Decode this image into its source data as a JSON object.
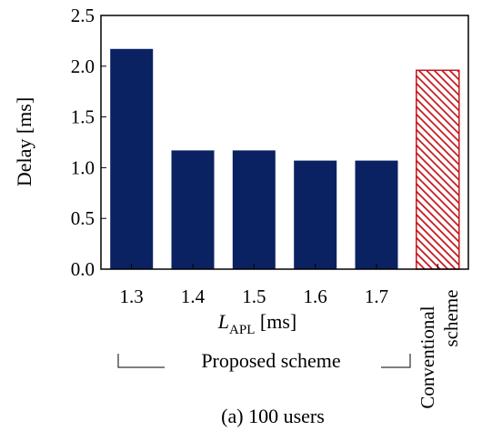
{
  "chart_data": {
    "type": "bar",
    "ylabel": "Delay [ms]",
    "ylim": [
      0.0,
      2.5
    ],
    "yticks": [
      "0.0",
      "0.5",
      "1.0",
      "1.5",
      "2.0",
      "2.5"
    ],
    "xlabel_main": "L",
    "xlabel_sub": "APL",
    "xlabel_unit": " [ms]",
    "categories": [
      "1.3",
      "1.4",
      "1.5",
      "1.6",
      "1.7",
      "Conventional scheme"
    ],
    "conventional_label_lines": [
      "Conventional",
      "scheme"
    ],
    "values": [
      2.17,
      1.17,
      1.17,
      1.07,
      1.07,
      1.96
    ],
    "bar_styles": [
      "solid",
      "solid",
      "solid",
      "solid",
      "solid",
      "hatched"
    ],
    "colors": {
      "proposed": "#0b2262",
      "conventional": "#c4161c"
    },
    "group_label": "Proposed scheme",
    "caption": "(a) 100 users",
    "grid": false,
    "legend": "none"
  }
}
